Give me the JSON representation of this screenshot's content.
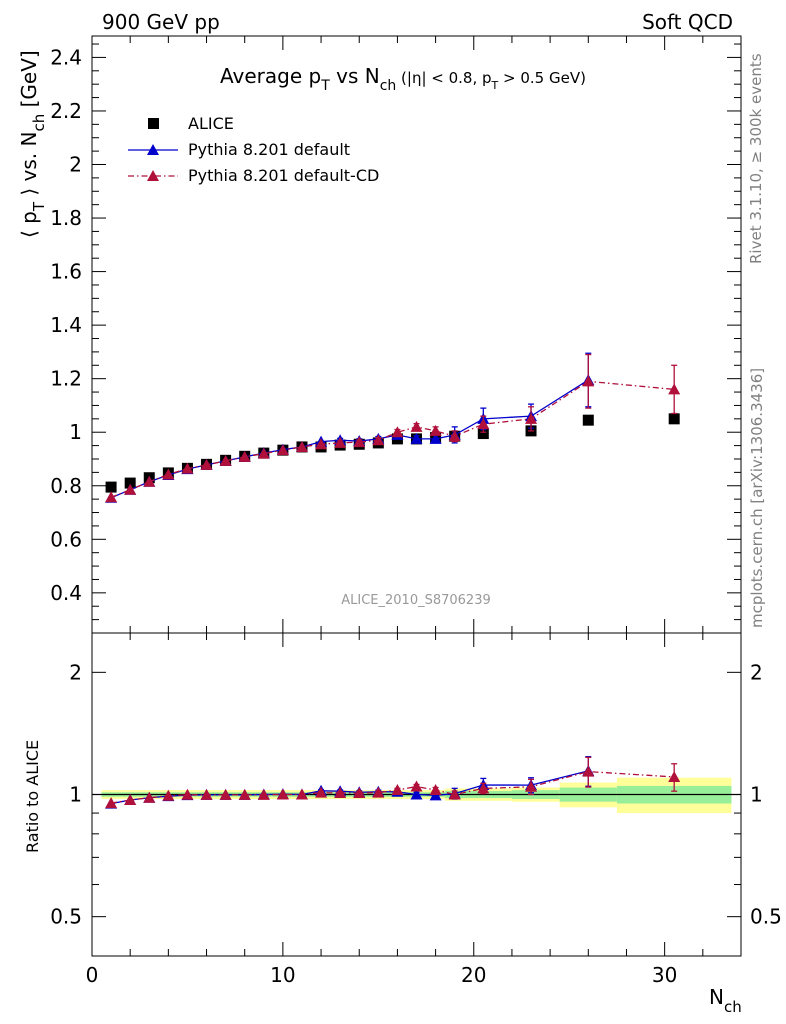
{
  "header": {
    "left_label": "900 GeV pp",
    "right_label": "Soft QCD"
  },
  "side_labels": {
    "rivet": "Rivet 3.1.10, ≥ 300k events",
    "mcplots": "mcplots.cern.ch [arXiv:1306.3436]"
  },
  "chart_data": {
    "type": "scatter",
    "title": "Average pT vs Nch (|η| < 0.8, pT > 0.5 GeV)",
    "title_parts": {
      "main": "Average p",
      "sub1": "T",
      "mid": " vs N",
      "sub2": "ch",
      "small1": " (|η| < 0.8, p",
      "small_sub": "T",
      "small2": " > 0.5 GeV)"
    },
    "ylabel_parts": {
      "a": "⟨ p",
      "sub1": "T",
      "b": " ⟩ vs. N",
      "sub2": "ch",
      "c": " [GeV]"
    },
    "xlabel_parts": {
      "a": "N",
      "sub": "ch"
    },
    "ratio_ylabel": "Ratio to ALICE",
    "analysis_id": "ALICE_2010_S8706239",
    "xlim": [
      0,
      34
    ],
    "ylim": [
      0.25,
      2.48
    ],
    "ratio_ylim": [
      0.4,
      2.5
    ],
    "ratio_scale": "log",
    "x_ticks": [
      0,
      10,
      20,
      30
    ],
    "y_ticks": [
      0.4,
      0.6,
      0.8,
      1,
      1.2,
      1.4,
      1.6,
      1.8,
      2,
      2.2,
      2.4
    ],
    "y_tick_labels": [
      "0.4",
      "0.6",
      "0.8",
      "1",
      "1.2",
      "1.4",
      "1.6",
      "1.8",
      "2",
      "2.2",
      "2.4"
    ],
    "ratio_ticks": [
      0.5,
      1,
      2
    ],
    "ratio_tick_labels": [
      "0.5",
      "1",
      "2"
    ],
    "legend_position": "top-left",
    "data": {
      "name": "ALICE",
      "color": "#000000",
      "x": [
        1,
        2,
        3,
        4,
        5,
        6,
        7,
        8,
        9,
        10,
        11,
        12,
        13,
        14,
        15,
        16,
        17,
        18,
        19,
        20.5,
        23,
        26,
        30.5
      ],
      "y": [
        0.795,
        0.81,
        0.83,
        0.848,
        0.865,
        0.88,
        0.895,
        0.91,
        0.922,
        0.933,
        0.945,
        0.945,
        0.952,
        0.955,
        0.96,
        0.975,
        0.975,
        0.98,
        0.985,
        0.995,
        1.005,
        1.045,
        1.05
      ],
      "band_edges": [
        18.5,
        22,
        24.5,
        27.5,
        33.5
      ],
      "band_stat": [
        0.02,
        0.025,
        0.04,
        0.05
      ],
      "band_total": [
        0.035,
        0.04,
        0.07,
        0.1
      ],
      "band_low_total": 0.025
    },
    "series": [
      {
        "name": "Pythia 8.201 default",
        "color": "#0000cc",
        "style": "solid",
        "x": [
          1,
          2,
          3,
          4,
          5,
          6,
          7,
          8,
          9,
          10,
          11,
          12,
          13,
          14,
          15,
          16,
          17,
          18,
          19,
          20.5,
          23,
          26
        ],
        "y": [
          0.755,
          0.785,
          0.815,
          0.84,
          0.862,
          0.878,
          0.893,
          0.908,
          0.922,
          0.935,
          0.945,
          0.965,
          0.97,
          0.967,
          0.975,
          0.99,
          0.975,
          0.975,
          0.99,
          1.05,
          1.06,
          1.195
        ],
        "err": [
          0.003,
          0.003,
          0.003,
          0.003,
          0.003,
          0.003,
          0.003,
          0.003,
          0.004,
          0.004,
          0.005,
          0.006,
          0.007,
          0.008,
          0.009,
          0.01,
          0.012,
          0.015,
          0.03,
          0.04,
          0.045,
          0.1
        ]
      },
      {
        "name": "Pythia 8.201 default-CD",
        "color": "#b0103a",
        "style": "dashdot",
        "x": [
          1,
          2,
          3,
          4,
          5,
          6,
          7,
          8,
          9,
          10,
          11,
          12,
          13,
          14,
          15,
          16,
          17,
          18,
          19,
          20.5,
          23,
          26,
          30.5
        ],
        "y": [
          0.757,
          0.785,
          0.815,
          0.842,
          0.864,
          0.878,
          0.893,
          0.908,
          0.92,
          0.933,
          0.945,
          0.955,
          0.96,
          0.963,
          0.97,
          1.0,
          1.02,
          1.005,
          0.985,
          1.03,
          1.05,
          1.19,
          1.16
        ],
        "err": [
          0.003,
          0.003,
          0.003,
          0.003,
          0.003,
          0.003,
          0.003,
          0.003,
          0.004,
          0.004,
          0.005,
          0.006,
          0.007,
          0.008,
          0.009,
          0.01,
          0.012,
          0.015,
          0.02,
          0.03,
          0.045,
          0.1,
          0.09
        ]
      }
    ]
  }
}
